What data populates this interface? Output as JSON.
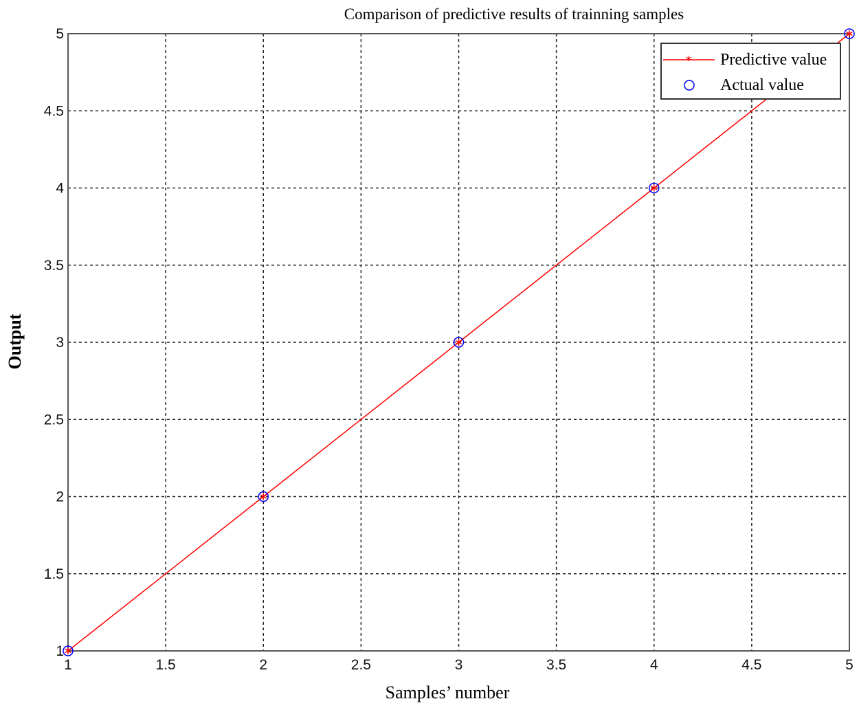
{
  "chart_data": {
    "type": "line",
    "title": "Comparison of predictive results of trainning samples",
    "xlabel": "Samples’ number",
    "ylabel": "Output",
    "xlim": [
      1,
      5
    ],
    "ylim": [
      1,
      5
    ],
    "xticks": [
      1,
      1.5,
      2,
      2.5,
      3,
      3.5,
      4,
      4.5,
      5
    ],
    "yticks": [
      1,
      1.5,
      2,
      2.5,
      3,
      3.5,
      4,
      4.5,
      5
    ],
    "xtick_labels": [
      "1",
      "1.5",
      "2",
      "2.5",
      "3",
      "3.5",
      "4",
      "4.5",
      "5"
    ],
    "ytick_labels": [
      "1",
      "1.5",
      "2",
      "2.5",
      "3",
      "3.5",
      "4",
      "4.5",
      "5"
    ],
    "grid": true,
    "legend_position": "top-right",
    "x": [
      1,
      2,
      3,
      4,
      5
    ],
    "series": [
      {
        "name": "Predictive value",
        "values": [
          1,
          2,
          3,
          4,
          5
        ],
        "color": "#ff0000",
        "marker": "asterisk",
        "line": "solid"
      },
      {
        "name": "Actual value",
        "values": [
          1,
          2,
          3,
          4,
          5
        ],
        "color": "#0000ff",
        "marker": "circle",
        "line": "none"
      }
    ]
  }
}
